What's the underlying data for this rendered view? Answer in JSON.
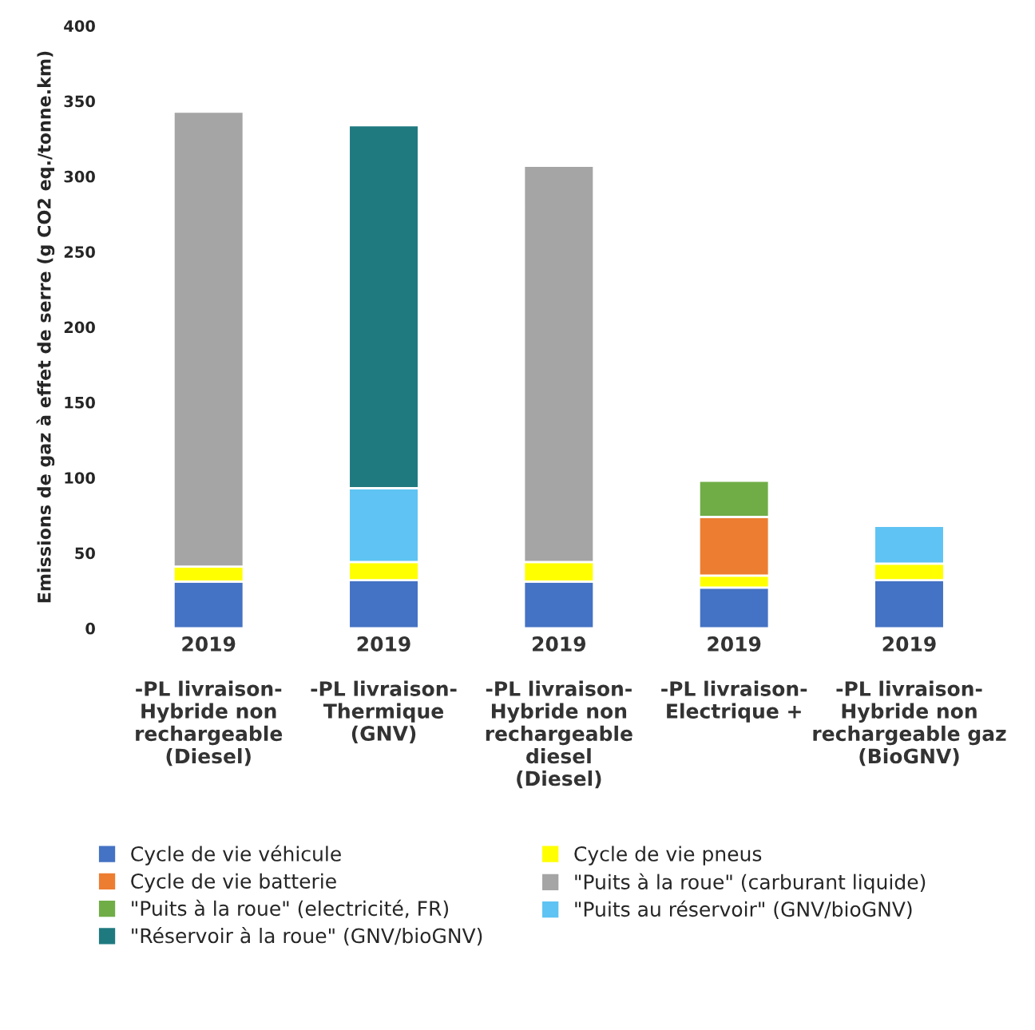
{
  "chart_data": {
    "type": "bar",
    "stacked": true,
    "ylabel": "Emissions de gaz à effet de serre (g CO2 eq./tonne.km)",
    "categories": [
      "2019\n\n-PL livraison-\nHybride non\nrechargeable\n(Diesel)",
      "2019\n\n-PL livraison-\nThermique\n(GNV)",
      "2019\n\n-PL livraison-\nHybride non\nrechargeable\ndiesel\n(Diesel)",
      "2019\n\n-PL livraison-\nElectrique +",
      "2019\n\n-PL livraison-\nHybride non\nrechargeable gaz\n(BioGNV)"
    ],
    "series": [
      {
        "name": "Cycle de vie véhicule",
        "color": "#4472c4",
        "values": [
          31,
          32,
          31,
          27,
          32
        ]
      },
      {
        "name": "Cycle de vie pneus",
        "color": "#ffff00",
        "values": [
          10,
          12,
          13,
          8,
          11
        ]
      },
      {
        "name": "Cycle de vie batterie",
        "color": "#ed7d31",
        "values": [
          null,
          null,
          null,
          39,
          null
        ]
      },
      {
        "name": "\"Puits à la roue\" (carburant liquide)",
        "color": "#a5a5a5",
        "values": [
          302,
          null,
          263,
          null,
          null
        ]
      },
      {
        "name": "\"Puits à la roue\" (electricité, FR)",
        "color": "#70ad47",
        "values": [
          null,
          null,
          null,
          24,
          null
        ]
      },
      {
        "name": "\"Puits au réservoir\" (GNV/bioGNV)",
        "color": "#5fc3f3",
        "values": [
          null,
          49,
          null,
          null,
          25
        ]
      },
      {
        "name": "\"Réservoir à la roue\" (GNV/bioGNV)",
        "color": "#1f7a80",
        "values": [
          null,
          241,
          null,
          null,
          null
        ]
      }
    ],
    "ylim": [
      0,
      400
    ],
    "yticks": [
      0,
      50,
      100,
      150,
      200,
      250,
      300,
      350,
      400
    ],
    "grid": false,
    "legend": "bottom"
  }
}
